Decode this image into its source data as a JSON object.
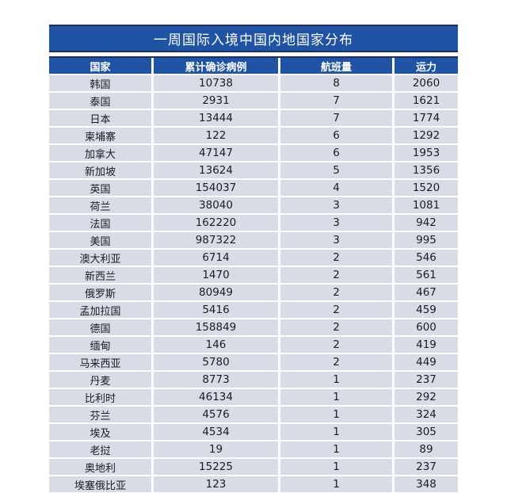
{
  "chart_data": {
    "type": "table",
    "title": "一周国际入境中国内地国家分布",
    "columns": [
      "国家",
      "累计确诊病例",
      "航班量",
      "运力"
    ],
    "rows": [
      [
        "韩国",
        "10738",
        "8",
        "2060"
      ],
      [
        "泰国",
        "2931",
        "7",
        "1621"
      ],
      [
        "日本",
        "13444",
        "7",
        "1774"
      ],
      [
        "柬埔寨",
        "122",
        "6",
        "1292"
      ],
      [
        "加拿大",
        "47147",
        "6",
        "1953"
      ],
      [
        "新加坡",
        "13624",
        "5",
        "1356"
      ],
      [
        "英国",
        "154037",
        "4",
        "1520"
      ],
      [
        "荷兰",
        "38040",
        "3",
        "1081"
      ],
      [
        "法国",
        "162220",
        "3",
        "942"
      ],
      [
        "美国",
        "987322",
        "3",
        "995"
      ],
      [
        "澳大利亚",
        "6714",
        "2",
        "546"
      ],
      [
        "新西兰",
        "1470",
        "2",
        "561"
      ],
      [
        "俄罗斯",
        "80949",
        "2",
        "467"
      ],
      [
        "孟加拉国",
        "5416",
        "2",
        "459"
      ],
      [
        "德国",
        "158849",
        "2",
        "600"
      ],
      [
        "缅甸",
        "146",
        "2",
        "419"
      ],
      [
        "马来西亚",
        "5780",
        "2",
        "449"
      ],
      [
        "丹麦",
        "8773",
        "1",
        "237"
      ],
      [
        "比利时",
        "46134",
        "1",
        "292"
      ],
      [
        "芬兰",
        "4576",
        "1",
        "324"
      ],
      [
        "埃及",
        "4534",
        "1",
        "305"
      ],
      [
        "老挝",
        "19",
        "1",
        "89"
      ],
      [
        "奥地利",
        "15225",
        "1",
        "237"
      ],
      [
        "埃塞俄比亚",
        "123",
        "1",
        "348"
      ]
    ],
    "layout": {
      "grid": "off",
      "header_position": "top",
      "row_separator": "white-lines"
    }
  },
  "colors": {
    "title_bg": "#2053a3",
    "header_bg": "#2053a3",
    "border_navy": "#1a2f5e",
    "row_bg": "#d9dce7",
    "header_text": "#ffffff",
    "body_text": "#1c1c1c",
    "page_bg": "#ffffff"
  }
}
